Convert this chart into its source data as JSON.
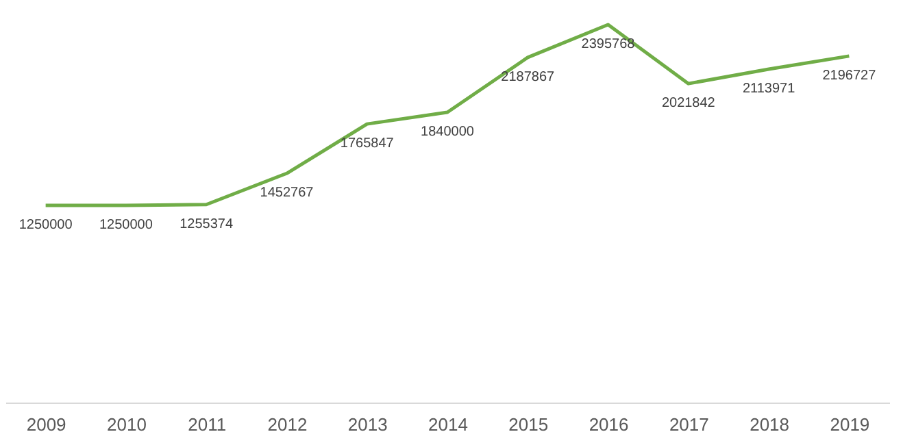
{
  "chart_data": {
    "type": "line",
    "categories": [
      "2009",
      "2010",
      "2011",
      "2012",
      "2013",
      "2014",
      "2015",
      "2016",
      "2017",
      "2018",
      "2019"
    ],
    "series": [
      {
        "color": "#70ad47",
        "values": [
          1250000,
          1250000,
          1255374,
          1452767,
          1765847,
          1840000,
          2187867,
          2395768,
          2021842,
          2113971,
          2196727
        ]
      }
    ],
    "data_labels": true,
    "grid": false,
    "legend": false,
    "marker": "none",
    "line_style": "solid",
    "tick_labels": "x"
  }
}
